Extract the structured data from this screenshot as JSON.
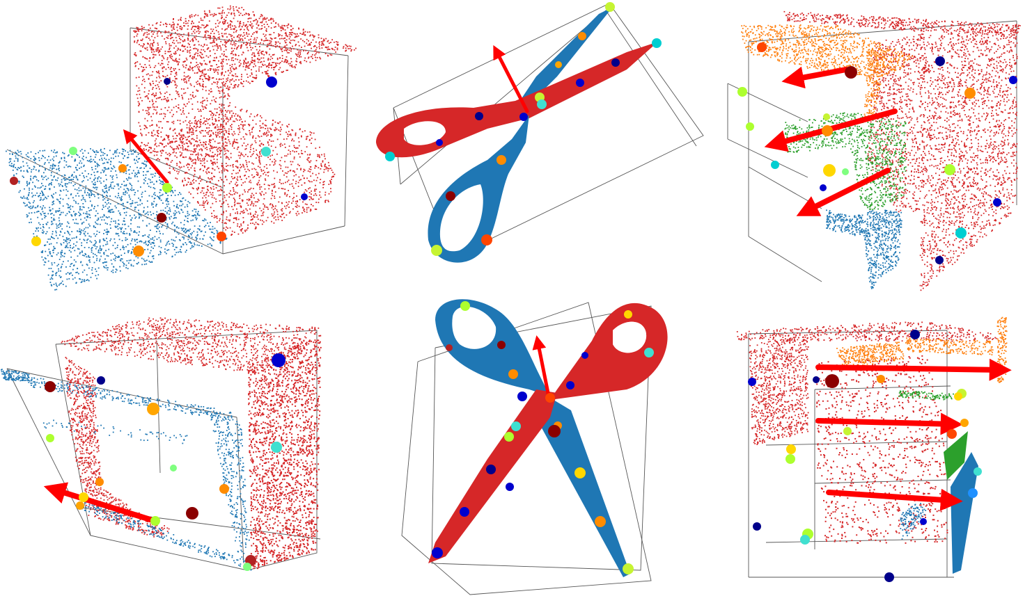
{
  "figure": {
    "panels": [
      {
        "id": "cabinet-open-door",
        "object": "cabinet",
        "parts": [
          "cabinet-body",
          "door"
        ]
      },
      {
        "id": "scissors-closed",
        "object": "scissors",
        "parts": [
          "blade-red",
          "blade-blue"
        ]
      },
      {
        "id": "drawer-cabinet-open",
        "object": "drawer-cabinet",
        "parts": [
          "frame",
          "drawer-top",
          "drawer-middle",
          "drawer-bottom"
        ]
      },
      {
        "id": "cabinet-door-partly-open",
        "object": "cabinet",
        "parts": [
          "cabinet-body",
          "door"
        ]
      },
      {
        "id": "scissors-open",
        "object": "scissors",
        "parts": [
          "blade-red",
          "blade-blue"
        ]
      },
      {
        "id": "drawer-cabinet-side",
        "object": "drawer-cabinet",
        "parts": [
          "frame",
          "drawer-top",
          "drawer-middle",
          "drawer-bottom"
        ]
      }
    ]
  },
  "colors": {
    "part_red": "#d62728",
    "part_blue": "#1f77b4",
    "part_orange": "#ff7f0e",
    "part_green": "#2ca02c",
    "axis_arrow": "#ff0000",
    "bbox_line": "#555555",
    "keypoints": [
      "#00008b",
      "#0000cd",
      "#1e90ff",
      "#00ced1",
      "#40e0d0",
      "#7fff7f",
      "#adff2f",
      "#c6f432",
      "#ffd700",
      "#ffa500",
      "#ff8c00",
      "#ff4500",
      "#b22222",
      "#8b0000"
    ]
  }
}
